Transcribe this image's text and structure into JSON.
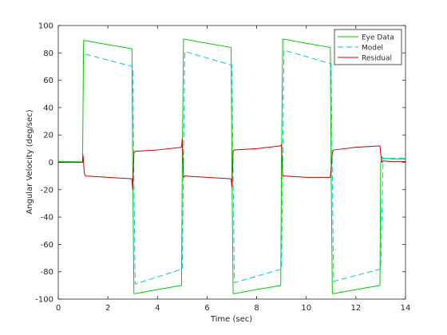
{
  "chart_data": {
    "type": "line",
    "title": "",
    "xlabel": "Time (sec)",
    "ylabel": "Angular  Velocity  (deg/sec)",
    "xlim": [
      0,
      14
    ],
    "ylim": [
      -100,
      100
    ],
    "xticks": [
      0,
      2,
      4,
      6,
      8,
      10,
      12,
      14
    ],
    "yticks": [
      -100,
      -80,
      -60,
      -40,
      -20,
      0,
      20,
      40,
      60,
      80,
      100
    ],
    "grid": false,
    "legend_position": "top-right",
    "series": [
      {
        "name": "Eye Data",
        "color": "#00cc00",
        "dash": "solid",
        "x": [
          0,
          0.5,
          0.98,
          1.02,
          1.1,
          2.0,
          2.97,
          3.0,
          3.05,
          3.1,
          4.0,
          4.97,
          5.0,
          5.05,
          5.1,
          6.0,
          6.97,
          7.0,
          7.05,
          7.1,
          8.0,
          8.97,
          9.0,
          9.05,
          9.1,
          10.0,
          10.97,
          11.0,
          11.05,
          11.1,
          12.0,
          12.97,
          13.0,
          13.05,
          13.1,
          13.5,
          14.0
        ],
        "y": [
          0.5,
          0.5,
          0.3,
          89,
          89,
          86,
          83,
          0,
          -96,
          -96,
          -93,
          -90,
          0,
          90,
          90,
          87,
          84,
          0,
          -96,
          -96,
          -93,
          -90,
          0,
          90,
          90,
          87,
          84,
          0,
          -96,
          -96,
          -93,
          -90,
          0,
          4,
          3,
          2.5,
          2.5
        ]
      },
      {
        "name": "Model",
        "color": "#00c8dc",
        "dash": "dashed",
        "x": [
          1.1,
          3.0,
          3.1,
          5.0,
          5.1,
          7.0,
          7.1,
          9.0,
          9.1,
          11.0,
          11.1,
          13.0,
          13.1,
          14.0
        ],
        "y": [
          79,
          70,
          -89,
          -78,
          81,
          71,
          -88,
          -78,
          82,
          72,
          -87,
          -78,
          3,
          3
        ]
      },
      {
        "name": "Residual",
        "color": "#cc0000",
        "dash": "solid",
        "x": [
          0,
          0.5,
          0.98,
          1.0,
          1.05,
          1.1,
          2.0,
          2.97,
          3.0,
          3.05,
          3.1,
          4.0,
          4.97,
          5.0,
          5.05,
          5.1,
          6.0,
          6.97,
          7.0,
          7.05,
          7.1,
          8.0,
          8.97,
          9.0,
          9.05,
          9.1,
          10.0,
          10.97,
          11.0,
          11.05,
          11.1,
          12.0,
          12.97,
          13.0,
          13.05,
          13.1,
          13.5,
          14.0
        ],
        "y": [
          0,
          0,
          0,
          5,
          -8,
          -10,
          -11,
          -12,
          -20,
          7,
          8,
          9,
          11,
          17,
          -11,
          -10,
          -11,
          -12,
          -18,
          8,
          9,
          10,
          12,
          13,
          -10,
          -10,
          -11,
          -11,
          -5,
          7,
          9,
          11,
          12,
          6,
          0,
          1,
          0.5,
          0.5
        ]
      }
    ]
  }
}
